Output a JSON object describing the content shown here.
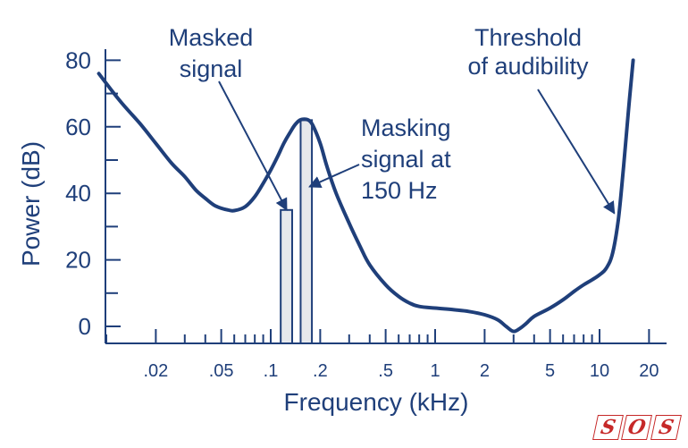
{
  "colors": {
    "primary": "#1f3f7a",
    "bar_fill": "#e6e8ec",
    "logo_red": "#c62828"
  },
  "logo": {
    "text": "SOS"
  },
  "chart_data": {
    "type": "line",
    "title": "",
    "xlabel": "Frequency (kHz)",
    "ylabel": "Power (dB)",
    "x_scale": "log",
    "xlim": [
      0.008,
      22
    ],
    "ylim": [
      -5,
      80
    ],
    "grid": false,
    "y_ticks": [
      {
        "value": 80,
        "label": "80"
      },
      {
        "value": 60,
        "label": "60"
      },
      {
        "value": 40,
        "label": "40"
      },
      {
        "value": 20,
        "label": "20"
      },
      {
        "value": 0,
        "label": "0"
      }
    ],
    "y_minor_ticks": [
      70,
      50,
      30,
      10
    ],
    "x_tick_labels": [
      {
        "value": 0.02,
        "label": ".02"
      },
      {
        "value": 0.05,
        "label": ".05"
      },
      {
        "value": 0.1,
        "label": ".1"
      },
      {
        "value": 0.2,
        "label": ".2"
      },
      {
        "value": 0.5,
        "label": ".5"
      },
      {
        "value": 1,
        "label": "1"
      },
      {
        "value": 2,
        "label": "2"
      },
      {
        "value": 5,
        "label": "5"
      },
      {
        "value": 10,
        "label": "10"
      },
      {
        "value": 20,
        "label": "20"
      }
    ],
    "x_minor_ticks": [
      0.01,
      0.03,
      0.04,
      0.06,
      0.07,
      0.08,
      0.09,
      0.3,
      0.4,
      0.6,
      0.7,
      0.8,
      0.9,
      3,
      4,
      6,
      7,
      8,
      9
    ],
    "series": [
      {
        "points": [
          [
            0.009,
            76
          ],
          [
            0.012,
            68
          ],
          [
            0.016,
            61
          ],
          [
            0.02,
            55
          ],
          [
            0.025,
            49
          ],
          [
            0.03,
            45
          ],
          [
            0.035,
            41
          ],
          [
            0.04,
            38.5
          ],
          [
            0.045,
            36.5
          ],
          [
            0.05,
            35.5
          ],
          [
            0.055,
            35
          ],
          [
            0.06,
            34.8
          ],
          [
            0.07,
            36
          ],
          [
            0.08,
            39
          ],
          [
            0.09,
            43
          ],
          [
            0.1,
            47
          ],
          [
            0.11,
            51
          ],
          [
            0.12,
            55
          ],
          [
            0.13,
            58
          ],
          [
            0.14,
            60.5
          ],
          [
            0.15,
            62
          ],
          [
            0.16,
            62.3
          ],
          [
            0.17,
            62
          ],
          [
            0.18,
            60.5
          ],
          [
            0.2,
            55
          ],
          [
            0.22,
            48
          ],
          [
            0.25,
            40
          ],
          [
            0.3,
            31
          ],
          [
            0.35,
            24
          ],
          [
            0.4,
            18.5
          ],
          [
            0.5,
            12.5
          ],
          [
            0.6,
            9
          ],
          [
            0.7,
            7
          ],
          [
            0.8,
            6
          ],
          [
            1,
            5.5
          ],
          [
            1.3,
            5
          ],
          [
            1.6,
            4.5
          ],
          [
            2,
            3.5
          ],
          [
            2.4,
            2
          ],
          [
            2.7,
            0
          ],
          [
            3,
            -1.5
          ],
          [
            3.3,
            -0.5
          ],
          [
            3.6,
            1
          ],
          [
            4,
            3
          ],
          [
            5,
            5.5
          ],
          [
            6,
            8
          ],
          [
            7,
            10.5
          ],
          [
            8,
            12.5
          ],
          [
            9,
            14
          ],
          [
            10,
            15.5
          ],
          [
            11,
            17.5
          ],
          [
            12,
            22
          ],
          [
            13,
            32
          ],
          [
            14,
            48
          ],
          [
            15,
            65
          ],
          [
            16,
            80
          ]
        ]
      }
    ],
    "bars": [
      {
        "name": "Masked signal",
        "x_start": 0.115,
        "x_end": 0.135,
        "value": 35
      },
      {
        "name": "Masking signal",
        "x_start": 0.152,
        "x_end": 0.178,
        "value": 62
      }
    ],
    "annotations": [
      {
        "id": "masked",
        "lines": [
          "Masked",
          "signal"
        ],
        "target_x": 0.125,
        "target_y": 35
      },
      {
        "id": "masking",
        "lines": [
          "Masking",
          "signal at",
          "150 Hz"
        ],
        "target_x": 0.172,
        "target_y": 42
      },
      {
        "id": "threshold",
        "lines": [
          "Threshold",
          "of audibility"
        ],
        "target_x": 12.3,
        "target_y": 34
      }
    ]
  }
}
